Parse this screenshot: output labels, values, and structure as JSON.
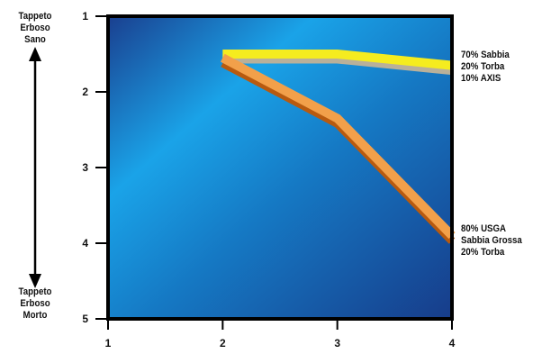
{
  "chart_data": {
    "type": "line",
    "title": "",
    "xlabel": "",
    "ylabel": "",
    "xlim": [
      1,
      4
    ],
    "ylim": [
      1,
      5
    ],
    "y_inverted": true,
    "x_ticks": [
      "1",
      "2",
      "3",
      "4"
    ],
    "y_ticks": [
      "1",
      "2",
      "3",
      "4",
      "5"
    ],
    "y_axis_top_label": [
      "Tappeto",
      "Erboso",
      "Sano"
    ],
    "y_axis_bottom_label": [
      "Tappeto",
      "Erboso",
      "Morto"
    ],
    "grid": false,
    "colors": {
      "background_light": "#1aa3e8",
      "background_dark": "#1a3f8f",
      "frame": "#000000",
      "series_yellow": "#f5ec1f",
      "series_orange": "#f08c24"
    },
    "series": [
      {
        "name": [
          "70% Sabbia",
          "20% Torba",
          "10% AXIS"
        ],
        "color": "#f5ec1f",
        "x": [
          2,
          3,
          4
        ],
        "y": [
          1.5,
          1.5,
          1.65
        ]
      },
      {
        "name": [
          "80% USGA",
          "Sabbia Grossa",
          "20% Torba"
        ],
        "color": "#f08c24",
        "x": [
          2,
          3,
          4
        ],
        "y": [
          1.55,
          2.35,
          3.9
        ]
      }
    ]
  }
}
